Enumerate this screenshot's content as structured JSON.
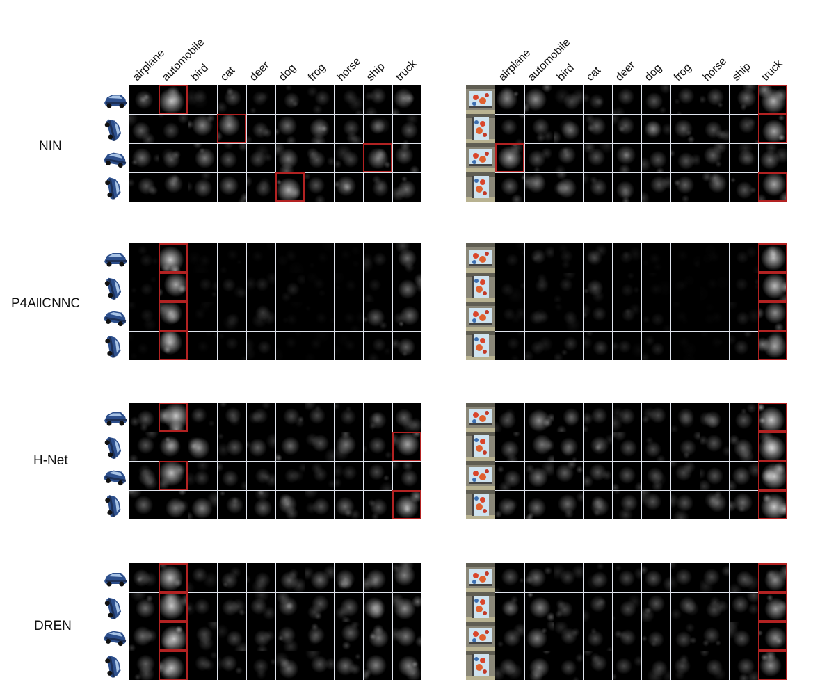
{
  "columns": [
    "airplane",
    "automobile",
    "bird",
    "cat",
    "deer",
    "dog",
    "frog",
    "horse",
    "ship",
    "truck"
  ],
  "models": [
    {
      "name": "NIN",
      "left_highlights": [
        1,
        3,
        8,
        5
      ],
      "right_highlights": [
        9,
        9,
        0,
        9
      ],
      "left_intensity": [
        [
          0.4,
          0.8,
          0.15,
          0.35,
          0.2,
          0.3,
          0.25,
          0.2,
          0.3,
          0.5
        ],
        [
          0.4,
          0.3,
          0.55,
          0.6,
          0.3,
          0.45,
          0.5,
          0.3,
          0.3,
          0.35
        ],
        [
          0.45,
          0.35,
          0.5,
          0.35,
          0.3,
          0.5,
          0.35,
          0.3,
          0.55,
          0.4
        ],
        [
          0.35,
          0.4,
          0.4,
          0.45,
          0.3,
          0.75,
          0.35,
          0.5,
          0.3,
          0.45
        ]
      ],
      "right_intensity": [
        [
          0.55,
          0.6,
          0.3,
          0.25,
          0.3,
          0.35,
          0.3,
          0.35,
          0.45,
          0.75
        ],
        [
          0.3,
          0.35,
          0.45,
          0.4,
          0.35,
          0.4,
          0.4,
          0.35,
          0.3,
          0.7
        ],
        [
          0.7,
          0.35,
          0.4,
          0.35,
          0.45,
          0.35,
          0.35,
          0.4,
          0.3,
          0.45
        ],
        [
          0.4,
          0.45,
          0.5,
          0.35,
          0.4,
          0.35,
          0.4,
          0.45,
          0.35,
          0.7
        ]
      ]
    },
    {
      "name": "P4AllCNNC",
      "left_highlights": [
        1,
        1,
        1,
        1
      ],
      "right_highlights": [
        9,
        9,
        9,
        9
      ],
      "left_intensity": [
        [
          0.1,
          0.85,
          0.05,
          0.05,
          0.05,
          0.05,
          0.03,
          0.03,
          0.15,
          0.45
        ],
        [
          0.1,
          0.7,
          0.1,
          0.15,
          0.15,
          0.15,
          0.05,
          0.05,
          0.1,
          0.45
        ],
        [
          0.1,
          0.65,
          0.05,
          0.1,
          0.25,
          0.05,
          0.05,
          0.05,
          0.4,
          0.45
        ],
        [
          0.05,
          0.75,
          0.05,
          0.1,
          0.15,
          0.05,
          0.05,
          0.05,
          0.15,
          0.4
        ]
      ],
      "right_intensity": [
        [
          0.1,
          0.25,
          0.1,
          0.25,
          0.1,
          0.05,
          0.03,
          0.03,
          0.1,
          0.8
        ],
        [
          0.1,
          0.15,
          0.15,
          0.3,
          0.1,
          0.05,
          0.03,
          0.03,
          0.1,
          0.8
        ],
        [
          0.1,
          0.15,
          0.15,
          0.2,
          0.15,
          0.1,
          0.03,
          0.03,
          0.15,
          0.6
        ],
        [
          0.1,
          0.15,
          0.2,
          0.25,
          0.15,
          0.15,
          0.03,
          0.03,
          0.2,
          0.7
        ]
      ]
    },
    {
      "name": "H-Net",
      "left_highlights": [
        1,
        9,
        1,
        9
      ],
      "right_highlights": [
        9,
        9,
        9,
        9
      ],
      "left_intensity": [
        [
          0.35,
          0.85,
          0.25,
          0.3,
          0.25,
          0.3,
          0.3,
          0.25,
          0.35,
          0.4
        ],
        [
          0.35,
          0.55,
          0.6,
          0.35,
          0.4,
          0.45,
          0.35,
          0.5,
          0.35,
          0.7
        ],
        [
          0.35,
          0.8,
          0.25,
          0.3,
          0.25,
          0.2,
          0.2,
          0.2,
          0.3,
          0.35
        ],
        [
          0.4,
          0.5,
          0.55,
          0.35,
          0.4,
          0.45,
          0.35,
          0.45,
          0.35,
          0.7
        ]
      ],
      "right_intensity": [
        [
          0.35,
          0.6,
          0.35,
          0.3,
          0.3,
          0.3,
          0.3,
          0.35,
          0.35,
          0.85
        ],
        [
          0.4,
          0.5,
          0.4,
          0.4,
          0.35,
          0.3,
          0.3,
          0.35,
          0.45,
          0.85
        ],
        [
          0.35,
          0.5,
          0.4,
          0.35,
          0.35,
          0.3,
          0.3,
          0.35,
          0.4,
          0.85
        ],
        [
          0.4,
          0.45,
          0.45,
          0.4,
          0.35,
          0.35,
          0.35,
          0.4,
          0.45,
          0.85
        ]
      ]
    },
    {
      "name": "DREN",
      "left_highlights": [
        1,
        1,
        1,
        1
      ],
      "right_highlights": [
        9,
        9,
        9,
        9
      ],
      "left_intensity": [
        [
          0.35,
          0.8,
          0.25,
          0.3,
          0.25,
          0.4,
          0.45,
          0.45,
          0.5,
          0.55
        ],
        [
          0.45,
          0.85,
          0.25,
          0.3,
          0.3,
          0.45,
          0.35,
          0.4,
          0.6,
          0.6
        ],
        [
          0.45,
          0.85,
          0.3,
          0.3,
          0.3,
          0.35,
          0.35,
          0.4,
          0.5,
          0.5
        ],
        [
          0.4,
          0.8,
          0.25,
          0.3,
          0.25,
          0.45,
          0.35,
          0.45,
          0.55,
          0.55
        ]
      ],
      "right_intensity": [
        [
          0.35,
          0.45,
          0.25,
          0.3,
          0.3,
          0.35,
          0.3,
          0.3,
          0.35,
          0.6
        ],
        [
          0.35,
          0.55,
          0.3,
          0.3,
          0.3,
          0.35,
          0.35,
          0.3,
          0.35,
          0.65
        ],
        [
          0.35,
          0.55,
          0.3,
          0.3,
          0.3,
          0.3,
          0.3,
          0.3,
          0.35,
          0.6
        ],
        [
          0.35,
          0.5,
          0.3,
          0.3,
          0.3,
          0.3,
          0.3,
          0.3,
          0.35,
          0.6
        ]
      ]
    }
  ],
  "colors": {
    "highlight": "#b22222",
    "cell_background": "#000000",
    "grid": "#dfe3ec"
  }
}
